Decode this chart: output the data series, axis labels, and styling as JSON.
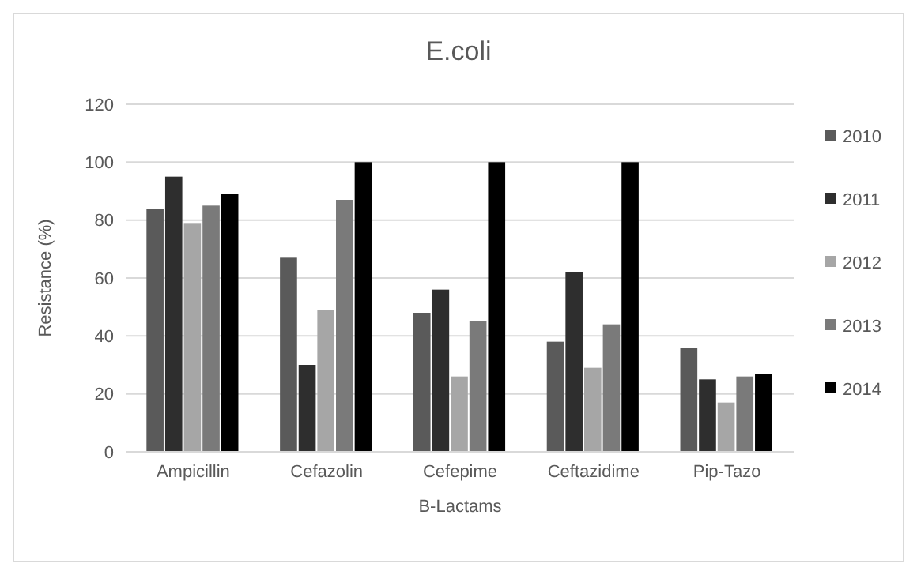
{
  "chart_data": {
    "type": "bar",
    "title": "E.coli",
    "xlabel": "B-Lactams",
    "ylabel": "Resistance (%)",
    "categories": [
      "Ampicillin",
      "Cefazolin",
      "Cefepime",
      "Ceftazidime",
      "Pip-Tazo"
    ],
    "series": [
      {
        "name": "2010",
        "color": "#5a5a5a",
        "values": [
          84,
          67,
          48,
          38,
          36
        ]
      },
      {
        "name": "2011",
        "color": "#2e2e2e",
        "values": [
          95,
          30,
          56,
          62,
          25
        ]
      },
      {
        "name": "2012",
        "color": "#a6a6a6",
        "values": [
          79,
          49,
          26,
          29,
          17
        ]
      },
      {
        "name": "2013",
        "color": "#7a7a7a",
        "values": [
          85,
          87,
          45,
          44,
          26
        ]
      },
      {
        "name": "2014",
        "color": "#000000",
        "values": [
          89,
          100,
          100,
          100,
          27
        ]
      }
    ],
    "ylim": [
      0,
      120
    ],
    "yticks": [
      0,
      20,
      40,
      60,
      80,
      100,
      120
    ],
    "grid": "y",
    "legend": "right"
  }
}
